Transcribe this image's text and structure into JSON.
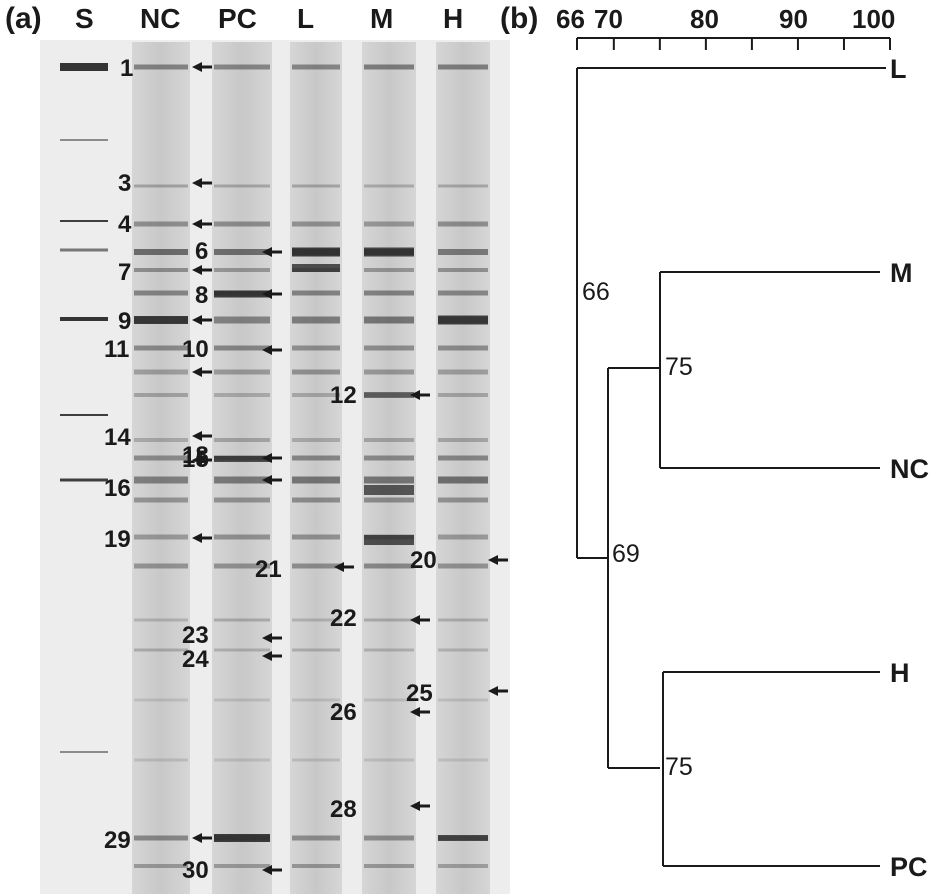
{
  "panel_a": {
    "label": "(a)",
    "lanes": [
      "S",
      "NC",
      "PC",
      "L",
      "M",
      "H"
    ],
    "band_labels": [
      "1",
      "3",
      "4",
      "6",
      "7",
      "8",
      "9",
      "10",
      "11",
      "12",
      "14",
      "15",
      "16",
      "18",
      "19",
      "20",
      "21",
      "22",
      "23",
      "24",
      "25",
      "26",
      "28",
      "29",
      "30"
    ]
  },
  "panel_b": {
    "label": "(b)",
    "axis_ticks": [
      "66",
      "70",
      "80",
      "90",
      "100"
    ],
    "leaves": [
      "L",
      "M",
      "NC",
      "H",
      "PC"
    ],
    "nodes": [
      "66",
      "75",
      "69",
      "75"
    ]
  },
  "chart_data": {
    "type": "dendrogram",
    "title": "",
    "axis": {
      "label": "",
      "range": [
        66,
        100
      ],
      "ticks": [
        66,
        70,
        80,
        90,
        100
      ]
    },
    "leaves": [
      "L",
      "M",
      "NC",
      "H",
      "PC"
    ],
    "clusters": [
      {
        "members": [
          "M",
          "NC"
        ],
        "similarity": 75
      },
      {
        "members": [
          "H",
          "PC"
        ],
        "similarity": 75
      },
      {
        "members": [
          "M",
          "NC",
          "H",
          "PC"
        ],
        "similarity": 69
      },
      {
        "members": [
          "L",
          "M",
          "NC",
          "H",
          "PC"
        ],
        "similarity": 66
      }
    ]
  },
  "colors": {
    "ink": "#1a1a1a",
    "gel_bg": "#ececec",
    "band": "#2a2a2a"
  }
}
